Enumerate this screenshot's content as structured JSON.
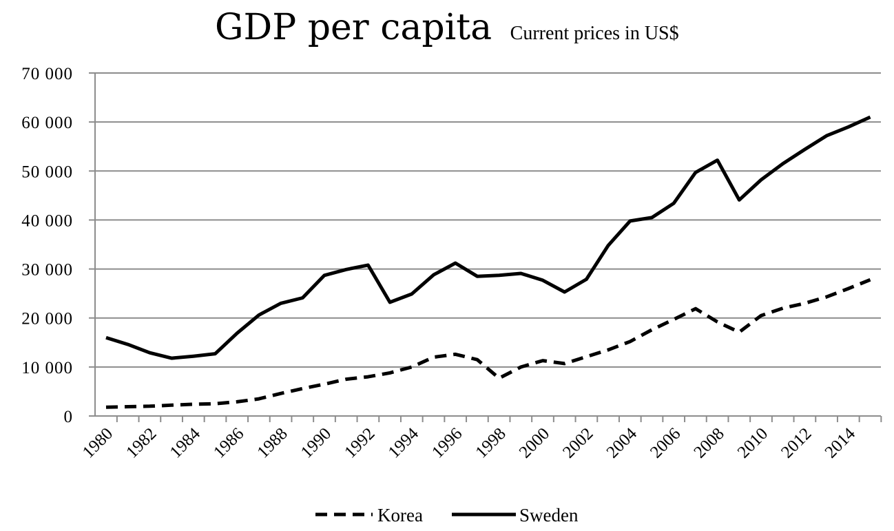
{
  "chart_data": {
    "type": "line",
    "title": "GDP per capita",
    "subtitle": "Current prices in US$",
    "xlabel": "",
    "ylabel": "",
    "ylim": [
      0,
      70000
    ],
    "yticks": [
      0,
      10000,
      20000,
      30000,
      40000,
      50000,
      60000,
      70000
    ],
    "ytick_labels": [
      "0",
      "10 000",
      "20 000",
      "30 000",
      "40 000",
      "50 000",
      "60 000",
      "70 000"
    ],
    "x": [
      1980,
      1981,
      1982,
      1983,
      1984,
      1985,
      1986,
      1987,
      1988,
      1989,
      1990,
      1991,
      1992,
      1993,
      1994,
      1995,
      1996,
      1997,
      1998,
      1999,
      2000,
      2001,
      2002,
      2003,
      2004,
      2005,
      2006,
      2007,
      2008,
      2009,
      2010,
      2011,
      2012,
      2013,
      2014,
      2015
    ],
    "xtick_labels": [
      "1980",
      "1982",
      "1984",
      "1986",
      "1988",
      "1990",
      "1992",
      "1994",
      "1996",
      "1998",
      "2000",
      "2002",
      "2004",
      "2006",
      "2008",
      "2010",
      "2012",
      "2014"
    ],
    "grid": true,
    "legend_position": "bottom",
    "series": [
      {
        "name": "Korea",
        "style": "dashed",
        "color": "#000000",
        "values": [
          1800,
          1900,
          2000,
          2200,
          2400,
          2500,
          2900,
          3500,
          4600,
          5600,
          6500,
          7500,
          8000,
          8800,
          10000,
          12000,
          12600,
          11500,
          7700,
          10000,
          11300,
          10700,
          12100,
          13500,
          15200,
          17600,
          19700,
          21900,
          19200,
          17100,
          20500,
          22000,
          23000,
          24300,
          26000,
          27800
        ]
      },
      {
        "name": "Sweden",
        "style": "solid",
        "color": "#000000",
        "values": [
          16000,
          14600,
          12900,
          11800,
          12200,
          12700,
          16900,
          20600,
          23000,
          24100,
          28700,
          29900,
          30800,
          23200,
          24900,
          28800,
          31200,
          28500,
          28700,
          29100,
          27700,
          25300,
          27900,
          34800,
          39800,
          40500,
          43400,
          49700,
          52200,
          44100,
          48200,
          51500,
          54400,
          57200,
          59000,
          61000
        ]
      }
    ]
  }
}
